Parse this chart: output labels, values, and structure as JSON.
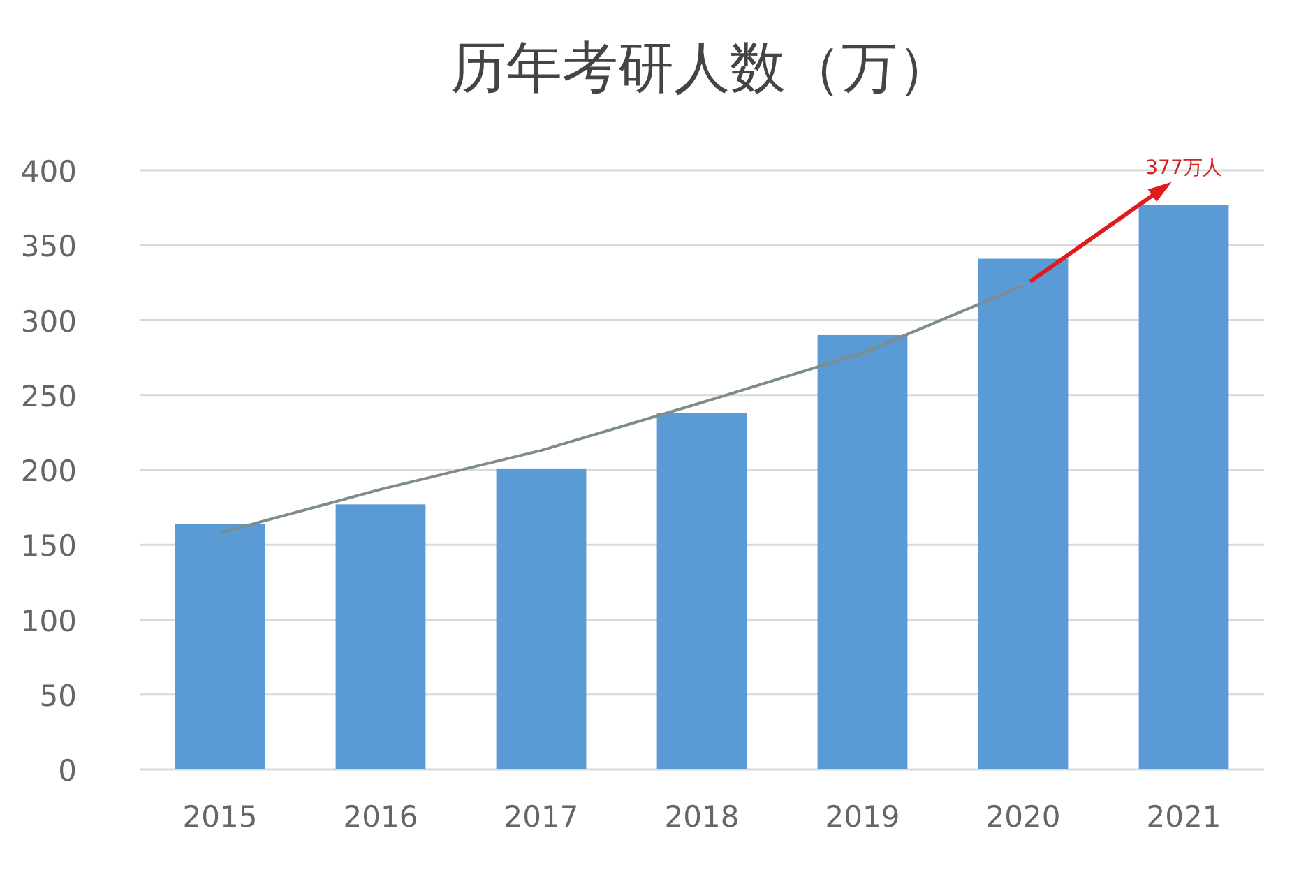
{
  "chart_data": {
    "type": "bar",
    "title": "历年考研人数（万）",
    "categories": [
      "2015",
      "2016",
      "2017",
      "2018",
      "2019",
      "2020",
      "2021"
    ],
    "series": [
      {
        "color": "#5b9bd5",
        "values": [
          164,
          177,
          201,
          238,
          290,
          341,
          377
        ]
      },
      {
        "type": "line",
        "color": "#7f8c8d",
        "values": [
          158,
          187,
          213,
          245,
          278,
          323,
          null
        ]
      }
    ],
    "ylim": [
      0,
      400
    ],
    "yticks": [
      0,
      50,
      100,
      150,
      200,
      250,
      300,
      350,
      400
    ],
    "grid": "y",
    "annotations": [
      {
        "text": "377万人",
        "x": "2021",
        "y": 377
      }
    ]
  }
}
